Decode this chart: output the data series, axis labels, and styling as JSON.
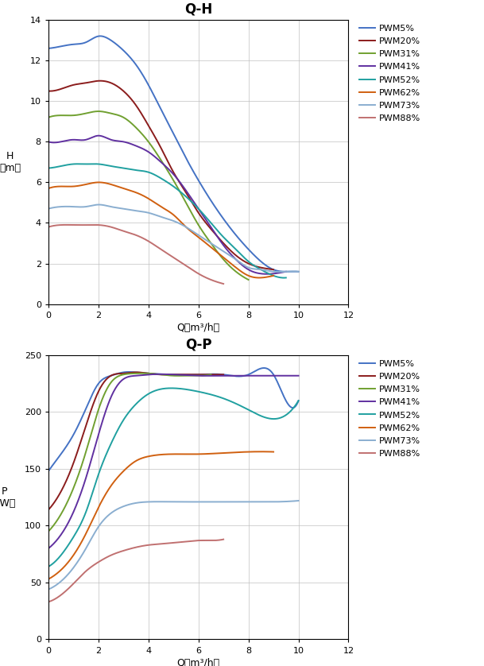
{
  "qh_title": "Q-H",
  "qp_title": "Q-P",
  "xlabel": "Q（m³/h）",
  "colors": {
    "PWM5%": "#4472C4",
    "PWM20%": "#8B1C1C",
    "PWM31%": "#70A030",
    "PWM41%": "#6030A0",
    "PWM52%": "#20A0A0",
    "PWM62%": "#D06010",
    "PWM73%": "#8AAED0",
    "PWM88%": "#C07070"
  },
  "legend_order": [
    "PWM5%",
    "PWM20%",
    "PWM31%",
    "PWM41%",
    "PWM52%",
    "PWM62%",
    "PWM73%",
    "PWM88%"
  ],
  "qh_xlim": [
    0,
    12
  ],
  "qh_ylim": [
    0,
    14
  ],
  "qp_xlim": [
    0,
    12
  ],
  "qp_ylim": [
    0,
    250
  ],
  "qh_xticks": [
    0,
    2,
    4,
    6,
    8,
    10,
    12
  ],
  "qh_yticks": [
    0,
    2,
    4,
    6,
    8,
    10,
    12,
    14
  ],
  "qp_xticks": [
    0,
    2,
    4,
    6,
    8,
    10,
    12
  ],
  "qp_yticks": [
    0,
    50,
    100,
    150,
    200,
    250
  ],
  "qh_data": {
    "PWM5%": {
      "q": [
        0,
        0.5,
        1.0,
        1.5,
        2.0,
        2.5,
        3.0,
        3.5,
        4.0,
        4.5,
        5.0,
        5.5,
        6.0,
        6.5,
        7.0,
        7.5,
        8.0,
        8.5,
        9.0,
        9.5,
        10.0
      ],
      "h": [
        12.6,
        12.7,
        12.8,
        12.9,
        13.2,
        13.0,
        12.5,
        11.8,
        10.8,
        9.6,
        8.4,
        7.2,
        6.1,
        5.1,
        4.2,
        3.4,
        2.7,
        2.1,
        1.7,
        1.6,
        1.6
      ]
    },
    "PWM20%": {
      "q": [
        0,
        0.5,
        1.0,
        1.5,
        2.0,
        2.5,
        3.0,
        3.5,
        4.0,
        4.5,
        5.0,
        5.5,
        6.0,
        6.5,
        7.0,
        7.5,
        8.0,
        8.5,
        9.0
      ],
      "h": [
        10.5,
        10.6,
        10.8,
        10.9,
        11.0,
        10.9,
        10.5,
        9.8,
        8.8,
        7.7,
        6.5,
        5.5,
        4.5,
        3.7,
        3.0,
        2.4,
        2.0,
        1.8,
        1.7
      ]
    },
    "PWM31%": {
      "q": [
        0,
        0.5,
        1.0,
        1.5,
        2.0,
        2.5,
        3.0,
        3.5,
        4.0,
        4.5,
        5.0,
        5.5,
        6.0,
        6.5,
        7.0,
        7.5,
        8.0
      ],
      "h": [
        9.2,
        9.3,
        9.3,
        9.4,
        9.5,
        9.4,
        9.2,
        8.7,
        8.0,
        7.1,
        6.1,
        5.0,
        3.9,
        3.0,
        2.2,
        1.6,
        1.2
      ]
    },
    "PWM41%": {
      "q": [
        0,
        0.5,
        1.0,
        1.5,
        2.0,
        2.5,
        3.0,
        3.5,
        4.0,
        4.5,
        5.0,
        5.5,
        6.0,
        6.5,
        7.0,
        7.5,
        8.0,
        8.5,
        9.0,
        9.5
      ],
      "h": [
        8.0,
        8.0,
        8.1,
        8.1,
        8.3,
        8.1,
        8.0,
        7.8,
        7.5,
        7.0,
        6.4,
        5.6,
        4.7,
        3.8,
        2.9,
        2.2,
        1.7,
        1.5,
        1.5,
        1.6
      ]
    },
    "PWM52%": {
      "q": [
        0,
        0.5,
        1.0,
        1.5,
        2.0,
        2.5,
        3.0,
        3.5,
        4.0,
        4.5,
        5.0,
        5.5,
        6.0,
        6.5,
        7.0,
        7.5,
        8.0,
        8.5,
        9.0,
        9.5
      ],
      "h": [
        6.7,
        6.8,
        6.9,
        6.9,
        6.9,
        6.8,
        6.7,
        6.6,
        6.5,
        6.2,
        5.8,
        5.3,
        4.7,
        4.0,
        3.3,
        2.7,
        2.1,
        1.7,
        1.4,
        1.3
      ]
    },
    "PWM62%": {
      "q": [
        0,
        0.5,
        1.0,
        1.5,
        2.0,
        2.5,
        3.0,
        3.5,
        4.0,
        4.5,
        5.0,
        5.5,
        6.0,
        6.5,
        7.0,
        7.5,
        8.0,
        8.5,
        9.0
      ],
      "h": [
        5.7,
        5.8,
        5.8,
        5.9,
        6.0,
        5.9,
        5.7,
        5.5,
        5.2,
        4.8,
        4.4,
        3.8,
        3.3,
        2.8,
        2.3,
        1.8,
        1.4,
        1.3,
        1.4
      ]
    },
    "PWM73%": {
      "q": [
        0,
        0.5,
        1.0,
        1.5,
        2.0,
        2.5,
        3.0,
        3.5,
        4.0,
        4.5,
        5.0,
        5.5,
        6.0,
        6.5,
        7.0,
        7.5,
        8.0,
        8.5,
        9.0,
        9.5,
        10.0
      ],
      "h": [
        4.7,
        4.8,
        4.8,
        4.8,
        4.9,
        4.8,
        4.7,
        4.6,
        4.5,
        4.3,
        4.1,
        3.8,
        3.4,
        3.0,
        2.6,
        2.2,
        1.8,
        1.7,
        1.6,
        1.6,
        1.6
      ]
    },
    "PWM88%": {
      "q": [
        0,
        0.5,
        1.0,
        1.5,
        2.0,
        2.5,
        3.0,
        3.5,
        4.0,
        4.5,
        5.0,
        5.5,
        6.0,
        6.5,
        7.0
      ],
      "h": [
        3.8,
        3.9,
        3.9,
        3.9,
        3.9,
        3.8,
        3.6,
        3.4,
        3.1,
        2.7,
        2.3,
        1.9,
        1.5,
        1.2,
        1.0
      ]
    }
  },
  "qp_data": {
    "PWM5%": {
      "q": [
        0,
        0.5,
        1.0,
        1.5,
        2.0,
        2.5,
        3.0,
        3.5,
        4.0,
        5.0,
        6.0,
        7.0,
        8.0,
        9.0,
        9.5,
        10.0
      ],
      "p": [
        148,
        163,
        180,
        203,
        225,
        232,
        235,
        235,
        234,
        233,
        233,
        233,
        233,
        233,
        210,
        210
      ]
    },
    "PWM20%": {
      "q": [
        0,
        0.5,
        1.0,
        1.5,
        2.0,
        2.5,
        3.0,
        3.5,
        4.0,
        4.5,
        5.0,
        6.0,
        7.0
      ],
      "p": [
        114,
        130,
        155,
        188,
        218,
        232,
        234,
        235,
        234,
        233,
        233,
        233,
        233
      ]
    },
    "PWM31%": {
      "q": [
        0,
        0.5,
        1.0,
        1.5,
        2.0,
        2.5,
        3.0,
        3.5,
        4.0,
        4.5,
        5.0,
        5.5,
        6.0,
        6.5
      ],
      "p": [
        95,
        110,
        133,
        165,
        202,
        226,
        233,
        234,
        234,
        233,
        232,
        232,
        232,
        233
      ]
    },
    "PWM41%": {
      "q": [
        0,
        0.5,
        1.0,
        1.5,
        2.0,
        2.5,
        3.0,
        3.5,
        4.0,
        5.0,
        6.0,
        7.0,
        8.0,
        9.0,
        10.0
      ],
      "p": [
        80,
        92,
        112,
        142,
        180,
        213,
        229,
        232,
        233,
        233,
        232,
        232,
        232,
        232,
        232
      ]
    },
    "PWM52%": {
      "q": [
        0,
        0.5,
        1.0,
        1.5,
        2.0,
        2.5,
        3.0,
        3.5,
        4.0,
        5.0,
        6.0,
        7.0,
        8.0,
        9.0,
        10.0
      ],
      "p": [
        64,
        74,
        90,
        112,
        145,
        172,
        193,
        207,
        216,
        221,
        218,
        212,
        202,
        194,
        210
      ]
    },
    "PWM62%": {
      "q": [
        0,
        0.5,
        1.0,
        1.5,
        2.0,
        2.5,
        3.0,
        3.5,
        4.0,
        5.0,
        6.0,
        7.0,
        8.0,
        9.0
      ],
      "p": [
        53,
        61,
        74,
        93,
        116,
        135,
        148,
        157,
        161,
        163,
        163,
        164,
        165,
        165
      ]
    },
    "PWM73%": {
      "q": [
        0,
        0.5,
        1.0,
        1.5,
        2.0,
        2.5,
        3.0,
        3.5,
        4.0,
        5.0,
        6.0,
        7.0,
        8.0,
        9.0,
        10.0
      ],
      "p": [
        44,
        51,
        63,
        80,
        99,
        111,
        117,
        120,
        121,
        121,
        121,
        121,
        121,
        121,
        122
      ]
    },
    "PWM88%": {
      "q": [
        0,
        0.5,
        1.0,
        1.5,
        2.0,
        2.5,
        3.0,
        3.5,
        4.0,
        4.5,
        5.0,
        5.5,
        6.0,
        6.5,
        7.0
      ],
      "p": [
        33,
        39,
        49,
        60,
        68,
        74,
        78,
        81,
        83,
        84,
        85,
        86,
        87,
        87,
        88
      ]
    }
  }
}
